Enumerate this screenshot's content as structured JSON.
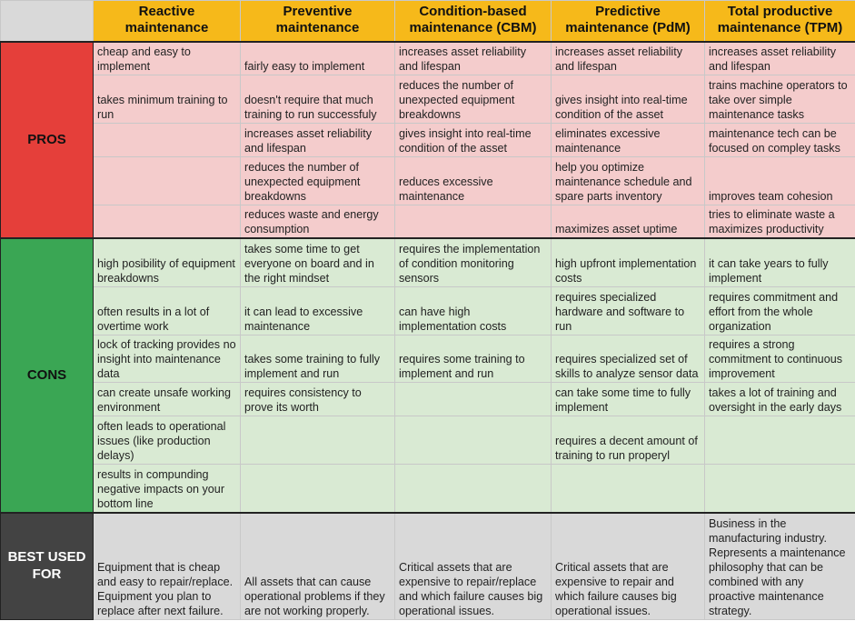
{
  "headers": [
    "Reactive maintenance",
    "Preventive maintenance",
    "Condition-based maintenance (CBM)",
    "Predictive maintenance (PdM)",
    "Total productive maintenance (TPM)"
  ],
  "sections": [
    {
      "key": "pros",
      "label": "PROS",
      "rows": [
        [
          "cheap and easy to implement",
          "fairly easy to implement",
          "increases asset reliability and lifespan",
          "increases asset reliability and lifespan",
          "increases asset reliability and lifespan"
        ],
        [
          "takes minimum training to run",
          "doesn't require that much training to run successfuly",
          "reduces the number of unexpected equipment breakdowns",
          "gives insight into real-time condition of the asset",
          "trains machine operators to take over simple maintenance tasks"
        ],
        [
          "",
          "increases asset reliability and lifespan",
          "gives insight into real-time condition of the asset",
          "eliminates excessive maintenance",
          "maintenance tech can be focused on compley tasks"
        ],
        [
          "",
          "reduces the number of unexpected equipment breakdowns",
          "reduces excessive maintenance",
          "help you optimize maintenance schedule and spare parts inventory",
          "improves team cohesion"
        ],
        [
          "",
          "reduces waste and energy consumption",
          "",
          "maximizes asset uptime",
          "tries to eliminate waste a maximizes productivity"
        ]
      ]
    },
    {
      "key": "cons",
      "label": "CONS",
      "rows": [
        [
          "high posibility of equipment breakdowns",
          "takes some time to get everyone on board and in the right mindset",
          "requires the implementation of condition monitoring sensors",
          "high upfront implementation costs",
          "it can take years to fully implement"
        ],
        [
          "often results in a lot of overtime work",
          "it can lead to excessive maintenance",
          "can have high implementation costs",
          "requires specialized hardware and software to run",
          "requires commitment and effort from the whole organization"
        ],
        [
          "lock of tracking provides no insight into maintenance data",
          "takes some training to fully implement and run",
          "requires some training to implement and run",
          "requires specialized set of skills to analyze sensor data",
          "requires a strong commitment to continuous improvement"
        ],
        [
          "can create unsafe working environment",
          "requires consistency to prove its worth",
          "",
          "can take some time to fully implement",
          "takes a lot of training and oversight in the early days"
        ],
        [
          "often leads to operational issues (like production delays)",
          "",
          "",
          "requires a decent amount of training to run properyl",
          ""
        ],
        [
          "results in compunding negative impacts on your bottom line",
          "",
          "",
          "",
          ""
        ]
      ]
    },
    {
      "key": "best",
      "label": "BEST USED FOR",
      "rows": [
        [
          "Equipment that is cheap and easy to repair/replace. Equipment you plan to replace after next failure.",
          "All assets that can cause operational problems if they are not working properly.",
          "Critical assets that are expensive to repair/replace and which failure causes big operational issues.",
          "Critical assets that are expensive to repair and which failure causes big operational issues.",
          "Business in the manufacturing industry. Represents a maintenance philosophy that can be combined with any proactive maintenance strategy."
        ]
      ]
    }
  ]
}
